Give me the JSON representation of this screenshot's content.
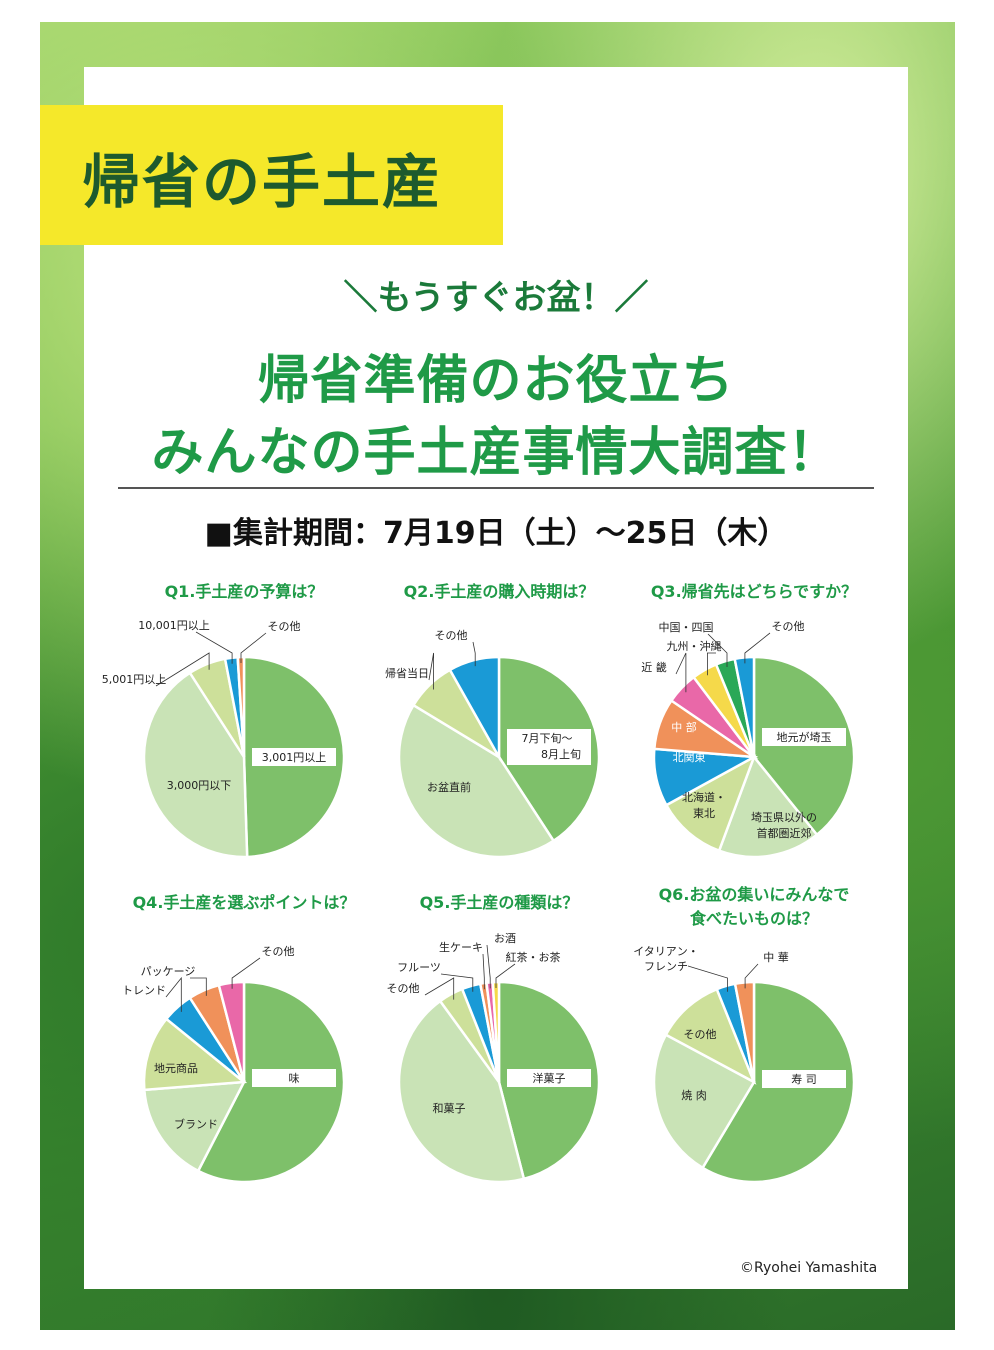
{
  "banner": {
    "title": "帰省の手土産"
  },
  "header": {
    "kicker": "＼もうすぐお盆！／",
    "headline_line1": "帰省準備のお役立ち",
    "headline_line2": "みんなの手土産事情大調査！",
    "period": "■集計期間：7月19日（土）～25日（木）"
  },
  "credit": "©Ryohei Yamashita",
  "colors": {
    "green_dark": "#7ec06a",
    "green_mid": "#8fc985",
    "green_light": "#c9e3b6",
    "green_lime": "#cde09a",
    "blue": "#1a9ad6",
    "orange": "#f0915a",
    "pink": "#e968a8",
    "yellow": "#f5d94a",
    "green_accent": "#2aa857",
    "title_green": "#1f9a47"
  },
  "chart_data": [
    {
      "type": "pie",
      "title": "Q1.手土産の予算は？",
      "categories": [
        "3,001円以上",
        "3,000円以下",
        "5,001円以上",
        "10,001円以上",
        "その他"
      ],
      "values": [
        49,
        41,
        6,
        2,
        1
      ],
      "colors": [
        "#7ec06a",
        "#c9e3b6",
        "#cde09a",
        "#1a9ad6",
        "#f0915a"
      ],
      "label_style": [
        "box",
        "plain",
        "leader",
        "leader",
        "leader"
      ]
    },
    {
      "type": "pie",
      "title": "Q2.手土産の購入時期は？",
      "categories": [
        "7月下旬～8月上旬",
        "お盆直前",
        "帰省当日",
        "その他"
      ],
      "values": [
        40,
        42,
        8,
        8
      ],
      "colors": [
        "#7ec06a",
        "#c9e3b6",
        "#cde09a",
        "#1a9ad6"
      ],
      "label_style": [
        "box",
        "plain",
        "leader",
        "leader"
      ]
    },
    {
      "type": "pie",
      "title": "Q3.帰省先はどちらですか？",
      "categories": [
        "地元が埼玉",
        "埼玉県以外の首都圏近郊",
        "北海道・東北",
        "北関東",
        "中 部",
        "近 畿",
        "九州・沖縄",
        "中国・四国",
        "その他"
      ],
      "values": [
        38,
        16,
        11,
        9,
        8,
        5,
        4,
        3,
        3
      ],
      "colors": [
        "#7ec06a",
        "#c9e3b6",
        "#cde09a",
        "#1a9ad6",
        "#f0915a",
        "#e968a8",
        "#f5d94a",
        "#2aa857",
        "#1a9ad6"
      ],
      "label_style": [
        "box",
        "plain",
        "plain",
        "plain-white",
        "plain-white",
        "leader",
        "leader",
        "leader",
        "leader"
      ]
    },
    {
      "type": "pie",
      "title": "Q4.手土産を選ぶポイントは？",
      "categories": [
        "味",
        "ブランド",
        "地元商品",
        "トレンド",
        "パッケージ",
        "その他"
      ],
      "values": [
        57,
        16,
        12,
        5,
        5,
        4
      ],
      "colors": [
        "#7ec06a",
        "#c9e3b6",
        "#cde09a",
        "#1a9ad6",
        "#f0915a",
        "#e968a8"
      ],
      "label_style": [
        "box",
        "plain",
        "plain",
        "leader",
        "leader",
        "leader"
      ]
    },
    {
      "type": "pie",
      "title": "Q5.手土産の種類は？",
      "categories": [
        "洋菓子",
        "和菓子",
        "その他",
        "フルーツ",
        "生ケーキ",
        "お酒",
        "紅茶・お茶"
      ],
      "values": [
        46,
        44,
        4,
        3,
        1,
        1,
        1
      ],
      "colors": [
        "#7ec06a",
        "#c9e3b6",
        "#cde09a",
        "#1a9ad6",
        "#f0915a",
        "#e968a8",
        "#f5d94a"
      ],
      "label_style": [
        "box",
        "plain",
        "leader",
        "leader",
        "leader",
        "leader",
        "leader"
      ]
    },
    {
      "type": "pie",
      "title_line1": "Q6.お盆の集いにみんなで",
      "title_line2": "食べたいものは？",
      "categories": [
        "寿 司",
        "焼 肉",
        "その他",
        "イタリアン・フレンチ",
        "中 華"
      ],
      "values": [
        58,
        24,
        11,
        3,
        3
      ],
      "colors": [
        "#7ec06a",
        "#c9e3b6",
        "#cde09a",
        "#1a9ad6",
        "#f0915a"
      ],
      "label_style": [
        "box",
        "plain",
        "plain",
        "leader",
        "leader"
      ]
    }
  ]
}
